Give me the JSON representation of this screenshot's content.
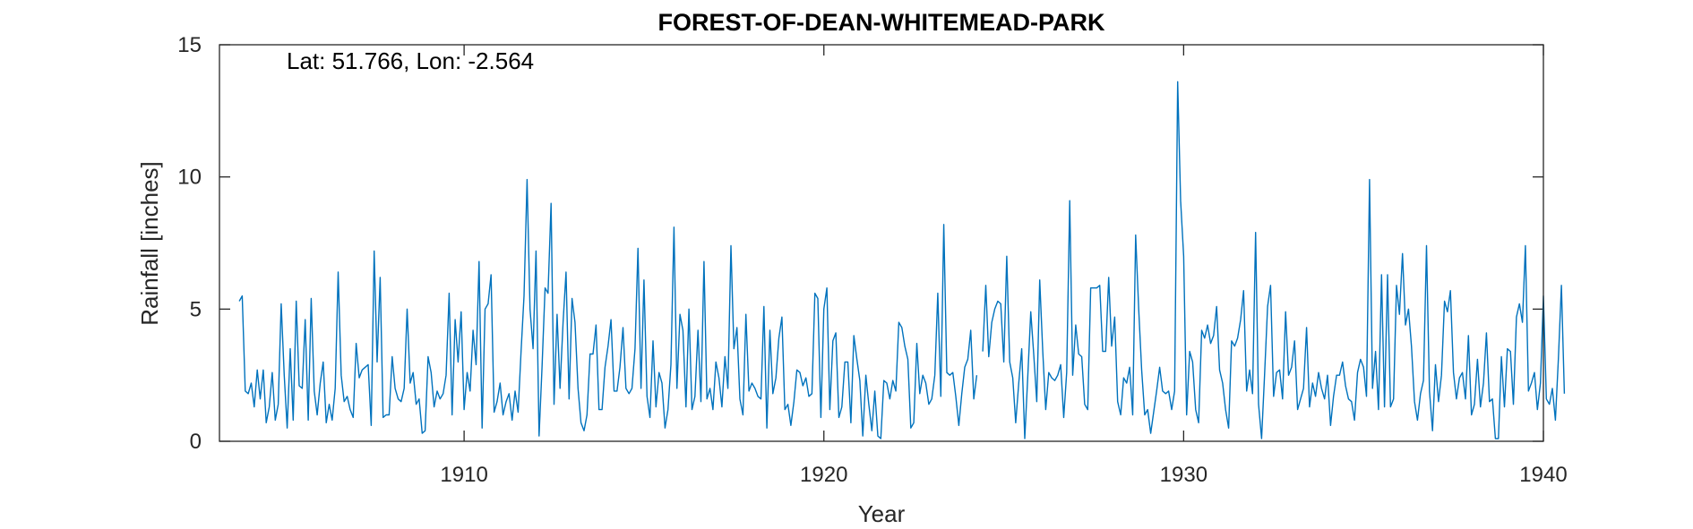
{
  "chart_data": {
    "type": "line",
    "title": "FOREST-OF-DEAN-WHITEMEAD-PARK",
    "annotation": "Lat: 51.766, Lon: -2.564",
    "xlabel": "Year",
    "ylabel": "Rainfall [inches]",
    "xlim": [
      1903.2,
      1940
    ],
    "ylim": [
      0,
      15
    ],
    "xticks": [
      1910,
      1920,
      1930,
      1940
    ],
    "yticks": [
      0,
      5,
      10,
      15
    ],
    "grid": false,
    "series_color": "#0072BD",
    "series": [
      {
        "x_start": 1903.75,
        "x_step": 0.0833333,
        "values": [
          5.3,
          5.5,
          1.9,
          1.8,
          2.2,
          1.3,
          2.7,
          1.6,
          2.7,
          0.7,
          1.3,
          2.6,
          0.8,
          1.4,
          5.2,
          2.5,
          0.5,
          3.5,
          0.8,
          5.3,
          2.1,
          2.0,
          4.6,
          0.8,
          5.4,
          1.9,
          1.0,
          2.2,
          3.0,
          0.7,
          1.4,
          0.8,
          2.0,
          6.4,
          2.5,
          1.5,
          1.7,
          1.2,
          0.9,
          3.7,
          2.4,
          2.7,
          2.8,
          2.9,
          0.6,
          7.2,
          3.0,
          6.2,
          0.9,
          1.0,
          1.0,
          3.2,
          2.0,
          1.6,
          1.5,
          2.0,
          5.0,
          2.2,
          2.6,
          1.4,
          1.6,
          0.3,
          0.4,
          3.2,
          2.6,
          1.3,
          1.9,
          1.6,
          1.8,
          2.5,
          5.6,
          1.0,
          4.6,
          3.0,
          4.9,
          1.2,
          2.6,
          1.9,
          4.2,
          2.9,
          6.8,
          0.5,
          5.0,
          5.2,
          6.3,
          1.1,
          1.5,
          2.2,
          1.0,
          1.5,
          1.8,
          0.8,
          1.9,
          1.1,
          3.4,
          5.5,
          9.9,
          5.0,
          3.5,
          7.2,
          0.2,
          2.8,
          5.8,
          5.6,
          9.0,
          1.4,
          4.8,
          2.0,
          4.5,
          6.4,
          1.6,
          5.4,
          4.5,
          2.0,
          0.7,
          0.4,
          1.0,
          3.3,
          3.3,
          4.4,
          1.2,
          1.2,
          2.8,
          3.6,
          4.6,
          1.9,
          1.9,
          2.8,
          4.3,
          2.0,
          1.8,
          2.0,
          3.5,
          7.3,
          2.0,
          6.1,
          1.7,
          0.9,
          3.8,
          1.3,
          2.6,
          2.2,
          0.5,
          1.2,
          2.9,
          8.1,
          2.0,
          4.8,
          4.2,
          1.3,
          5.0,
          1.2,
          1.7,
          4.2,
          1.5,
          6.8,
          1.6,
          2.0,
          1.2,
          3.0,
          2.4,
          1.3,
          3.2,
          2.0,
          7.4,
          3.5,
          4.3,
          1.6,
          1.0,
          4.8,
          1.9,
          2.2,
          2.0,
          1.7,
          1.6,
          5.1,
          0.5,
          4.2,
          1.8,
          2.4,
          3.9,
          4.7,
          1.2,
          1.4,
          0.6,
          1.5,
          2.7,
          2.6,
          2.1,
          2.4,
          1.7,
          1.8,
          5.6,
          5.4,
          0.9,
          5.0,
          5.8,
          1.2,
          3.8,
          4.1,
          0.9,
          1.3,
          3.0,
          3.0,
          0.7,
          4.0,
          3.1,
          2.3,
          0.2,
          2.5,
          1.4,
          0.4,
          1.9,
          0.2,
          0.1,
          2.3,
          2.2,
          1.6,
          2.3,
          1.9,
          4.5,
          4.3,
          3.6,
          3.1,
          0.5,
          0.7,
          3.7,
          1.8,
          2.5,
          2.2,
          1.4,
          1.6,
          2.5,
          5.6,
          1.7,
          8.2,
          2.6,
          2.5,
          2.6,
          1.7,
          0.6,
          1.8,
          2.8,
          3.1,
          4.2,
          1.6,
          2.5,
          null,
          3.4,
          5.9,
          3.2,
          4.5,
          5.0,
          5.3,
          5.2,
          3.0,
          7.0,
          3.0,
          2.4,
          0.7,
          2.2,
          3.5,
          0.1,
          2.4,
          4.9,
          3.3,
          1.5,
          6.1,
          3.4,
          1.2,
          2.6,
          2.4,
          2.3,
          2.5,
          2.9,
          0.9,
          2.6,
          9.1,
          2.5,
          4.4,
          3.3,
          3.2,
          1.4,
          1.2,
          5.8,
          5.8,
          5.8,
          5.9,
          3.4,
          3.4,
          6.2,
          3.6,
          4.7,
          1.5,
          1.0,
          2.4,
          2.2,
          2.8,
          1.0,
          7.8,
          5.0,
          2.7,
          1.0,
          1.2,
          0.3,
          1.1,
          1.9,
          2.8,
          1.9,
          1.8,
          1.9,
          1.2,
          1.9,
          13.6,
          9.1,
          7.0,
          1.0,
          3.4,
          3.0,
          1.2,
          0.7,
          4.2,
          3.9,
          4.4,
          3.7,
          4.0,
          5.1,
          2.7,
          2.2,
          1.2,
          0.5,
          3.8,
          3.6,
          3.9,
          4.6,
          5.7,
          1.9,
          2.7,
          1.8,
          7.9,
          1.4,
          0.1,
          2.5,
          5.1,
          5.9,
          1.7,
          2.6,
          2.7,
          1.6,
          4.9,
          2.5,
          2.8,
          3.8,
          1.2,
          1.6,
          2.0,
          4.3,
          1.3,
          2.2,
          1.7,
          2.6,
          2.0,
          1.6,
          2.5,
          0.6,
          1.7,
          2.5,
          2.5,
          3.0,
          2.1,
          1.6,
          1.5,
          0.8,
          2.6,
          3.1,
          2.8,
          1.7,
          9.9,
          2.0,
          3.4,
          1.2,
          6.3,
          1.3,
          6.3,
          1.3,
          1.6,
          5.9,
          4.8,
          7.1,
          4.4,
          5.0,
          3.6,
          1.5,
          0.8,
          1.8,
          2.3,
          7.4,
          1.9,
          0.4,
          2.9,
          1.5,
          2.5,
          5.3,
          4.9,
          5.7,
          2.6,
          1.6,
          2.4,
          2.6,
          1.6,
          4.0,
          1.0,
          1.4,
          3.1,
          1.3,
          2.2,
          4.1,
          1.5,
          1.6,
          0.1,
          0.1,
          3.2,
          1.3,
          3.5,
          3.4,
          1.4,
          4.7,
          5.2,
          4.5,
          7.4,
          1.9,
          2.2,
          2.6,
          1.2,
          2.2,
          5.5,
          1.6,
          1.4,
          2.0,
          0.8,
          3.1,
          5.9,
          1.8
        ]
      }
    ]
  }
}
